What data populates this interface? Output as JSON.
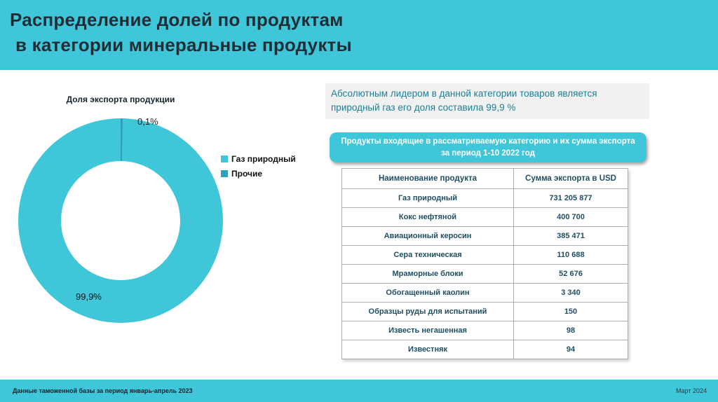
{
  "theme": {
    "accent": "#3fc7d9",
    "accent_secondary": "#2f9fc0",
    "title_color": "#1f2d36",
    "table_text": "#1f4e63",
    "callout_text": "#1a7f95",
    "callout_bg": "#f1f1f2"
  },
  "header": {
    "title_line1": "Распределение долей по продуктам",
    "title_line2": "в категории минеральные продукты"
  },
  "chart": {
    "title": "Доля экспорта продукции",
    "minor_label": "0,1%",
    "major_label": "99,9%",
    "legend": [
      {
        "label": "Газ природный"
      },
      {
        "label": "Прочие"
      }
    ]
  },
  "chart_data": {
    "type": "pie",
    "donut": true,
    "title": "Доля экспорта продукции",
    "labels": [
      "Газ природный",
      "Прочие"
    ],
    "values": [
      99.9,
      0.1
    ],
    "unit": "%",
    "value_labels": [
      "99,9%",
      "0,1%"
    ],
    "legend_position": "right",
    "colors": [
      "#3fc7d9",
      "#2f9fc0"
    ]
  },
  "callout": {
    "text": "Абсолютным лидером в данной категории товаров является природный газ его доля составила 99,9 %"
  },
  "table_banner": {
    "line1": "Продукты входящие в рассматриваемую категорию и их сумма экспорта",
    "line2": "за период 1-10 2022 год"
  },
  "table": {
    "headers": [
      "Наименование продукта",
      "Сумма экспорта в USD"
    ],
    "rows": [
      {
        "name": "Газ природный",
        "value": "731 205 877"
      },
      {
        "name": "Кокс нефтяной",
        "value": "400 700"
      },
      {
        "name": "Авиационный керосин",
        "value": "385 471"
      },
      {
        "name": "Сера техническая",
        "value": "110 688"
      },
      {
        "name": "Мраморные блоки",
        "value": "52 676"
      },
      {
        "name": "Обогащенный каолин",
        "value": "3 340"
      },
      {
        "name": "Образцы руды для испытаний",
        "value": "150"
      },
      {
        "name": "Известь негашенная",
        "value": "98"
      },
      {
        "name": "Известняк",
        "value": "94"
      }
    ]
  },
  "footer": {
    "left": "Данные таможенной базы за период январь-апрель 2023",
    "right": "Март 2024"
  }
}
